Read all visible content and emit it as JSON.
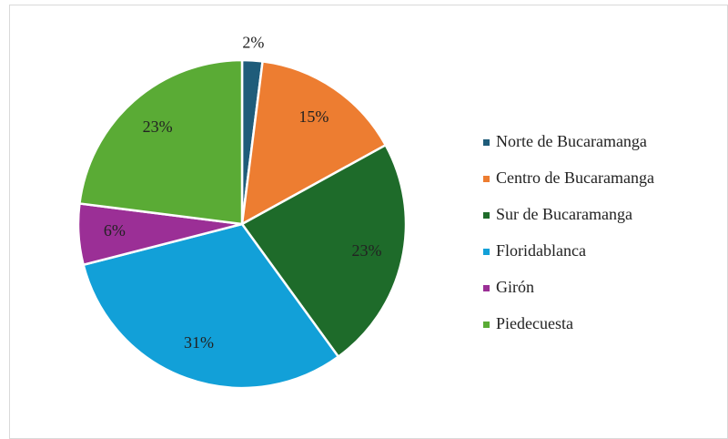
{
  "chart_data": {
    "type": "pie",
    "categories": [
      "Norte de Bucaramanga",
      "Centro de Bucaramanga",
      "Sur de Bucaramanga",
      "Floridablanca",
      "Girón",
      "Piedecuesta"
    ],
    "values": [
      2,
      15,
      23,
      31,
      6,
      23
    ],
    "value_labels": [
      "2%",
      "15%",
      "23%",
      "31%",
      "6%",
      "23%"
    ],
    "colors": [
      "#1f5c7a",
      "#ed7d31",
      "#1e6b2a",
      "#12a0d8",
      "#9b2f96",
      "#5aab35"
    ],
    "legend": "right"
  }
}
